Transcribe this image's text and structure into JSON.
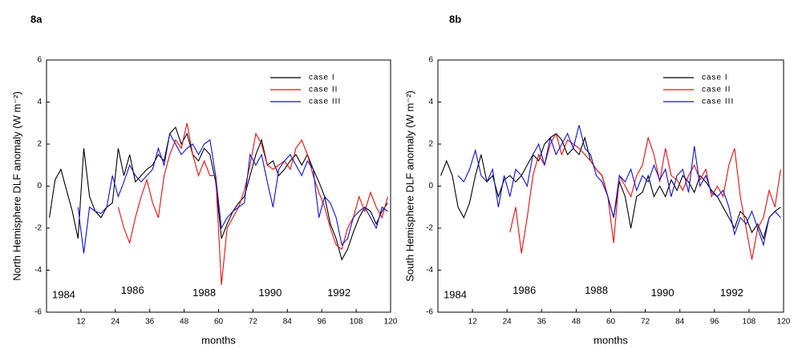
{
  "chart_data": [
    {
      "type": "line",
      "title": "8a",
      "y_label": "North Hemisphere DLF anomaly (W m⁻²)",
      "x_label": "months",
      "xlim": [
        0,
        120
      ],
      "ylim": [
        -6,
        6
      ],
      "xticks": [
        12,
        24,
        36,
        48,
        60,
        72,
        84,
        96,
        108,
        120
      ],
      "yticks": [
        -6,
        -4,
        -2,
        0,
        2,
        4,
        6
      ],
      "legend": "upper right",
      "x": [
        1,
        3,
        5,
        7,
        9,
        11,
        13,
        15,
        17,
        19,
        21,
        23,
        25,
        27,
        29,
        31,
        33,
        35,
        37,
        39,
        41,
        43,
        45,
        47,
        49,
        51,
        53,
        55,
        57,
        59,
        61,
        63,
        65,
        67,
        69,
        71,
        73,
        75,
        77,
        79,
        81,
        83,
        85,
        87,
        89,
        91,
        93,
        95,
        97,
        99,
        101,
        103,
        105,
        107,
        109,
        111,
        113,
        115,
        117,
        119
      ],
      "series": [
        {
          "name": "case I",
          "color": "#000000",
          "values": [
            -1.5,
            0.3,
            0.8,
            -0.2,
            -1.2,
            -2.5,
            1.8,
            -0.5,
            -1.2,
            -1.5,
            -1.0,
            -0.8,
            1.8,
            0.5,
            1.5,
            0.2,
            0.5,
            0.8,
            1.0,
            1.5,
            1.2,
            2.5,
            2.8,
            2.0,
            2.5,
            1.5,
            1.2,
            1.8,
            1.5,
            0.2,
            -2.5,
            -1.8,
            -1.2,
            -0.8,
            -0.5,
            0.5,
            1.5,
            2.2,
            1.0,
            1.2,
            0.5,
            0.8,
            1.2,
            1.5,
            1.0,
            1.5,
            0.8,
            0.2,
            -0.5,
            -1.8,
            -2.5,
            -3.5,
            -3.0,
            -2.2,
            -1.5,
            -1.0,
            -1.2,
            -1.8,
            -1.2,
            -0.8
          ]
        },
        {
          "name": "case II",
          "color": "#e01010",
          "values": [
            null,
            null,
            null,
            null,
            null,
            null,
            null,
            null,
            null,
            null,
            null,
            null,
            -1.0,
            -2.0,
            -2.7,
            -1.5,
            -0.5,
            0.3,
            -0.8,
            -1.5,
            0.5,
            1.5,
            2.2,
            1.8,
            3.0,
            1.5,
            0.5,
            1.2,
            0.5,
            0.5,
            -4.7,
            -2.0,
            -1.5,
            -1.0,
            -0.2,
            1.0,
            2.5,
            2.0,
            1.0,
            0.8,
            1.0,
            1.2,
            0.8,
            1.8,
            2.2,
            1.5,
            0.5,
            -0.3,
            -1.0,
            -2.0,
            -2.8,
            -3.0,
            -2.0,
            -1.5,
            -0.5,
            -1.2,
            -0.3,
            -1.0,
            -1.5,
            -0.5
          ]
        },
        {
          "name": "case III",
          "color": "#1010d0",
          "values": [
            null,
            null,
            null,
            null,
            null,
            -1.0,
            -3.2,
            -1.0,
            -1.2,
            -1.3,
            -1.0,
            0.5,
            -0.5,
            0.2,
            1.0,
            0.5,
            0.2,
            0.5,
            0.8,
            1.8,
            1.0,
            2.5,
            2.0,
            1.5,
            1.8,
            2.0,
            1.5,
            2.0,
            2.2,
            0.5,
            -2.0,
            -1.5,
            -1.2,
            -1.0,
            -0.8,
            1.5,
            1.0,
            1.5,
            0.2,
            -1.0,
            0.8,
            1.2,
            1.5,
            1.0,
            0.5,
            1.2,
            0.8,
            -1.5,
            -0.5,
            -0.8,
            -1.5,
            -2.8,
            -2.5,
            -1.5,
            -1.2,
            -1.0,
            -1.5,
            -2.0,
            -1.0,
            -1.2
          ]
        }
      ],
      "annotations": [
        {
          "text": "1984",
          "x": 6,
          "y": -5.2
        },
        {
          "text": "1986",
          "x": 30,
          "y": -5.0
        },
        {
          "text": "1988",
          "x": 55,
          "y": -5.1
        },
        {
          "text": "1990",
          "x": 78,
          "y": -5.1
        },
        {
          "text": "1992",
          "x": 102,
          "y": -5.1
        }
      ]
    },
    {
      "type": "line",
      "title": "8b",
      "y_label": "South Hemisphere DLF anomaly (W m⁻²)",
      "x_label": "months",
      "xlim": [
        0,
        120
      ],
      "ylim": [
        -6,
        6
      ],
      "xticks": [
        12,
        24,
        36,
        48,
        60,
        72,
        84,
        96,
        108,
        120
      ],
      "yticks": [
        -6,
        -4,
        -2,
        0,
        2,
        4,
        6
      ],
      "legend": "upper right",
      "x": [
        1,
        3,
        5,
        7,
        9,
        11,
        13,
        15,
        17,
        19,
        21,
        23,
        25,
        27,
        29,
        31,
        33,
        35,
        37,
        39,
        41,
        43,
        45,
        47,
        49,
        51,
        53,
        55,
        57,
        59,
        61,
        63,
        65,
        67,
        69,
        71,
        73,
        75,
        77,
        79,
        81,
        83,
        85,
        87,
        89,
        91,
        93,
        95,
        97,
        99,
        101,
        103,
        105,
        107,
        109,
        111,
        113,
        115,
        117,
        119
      ],
      "series": [
        {
          "name": "case I",
          "color": "#000000",
          "values": [
            0.5,
            1.2,
            0.5,
            -1.0,
            -1.5,
            -0.8,
            0.5,
            1.5,
            0.2,
            0.5,
            -0.5,
            0.3,
            0.5,
            0.2,
            0.5,
            1.0,
            1.5,
            1.2,
            2.0,
            2.3,
            2.5,
            2.2,
            1.5,
            1.8,
            1.5,
            2.3,
            1.2,
            0.8,
            0.5,
            -0.5,
            -1.5,
            0.2,
            -0.5,
            -2.0,
            -0.5,
            -0.3,
            0.5,
            -0.5,
            0.0,
            -0.5,
            0.3,
            -0.2,
            0.5,
            0.2,
            -0.3,
            0.5,
            0.2,
            -0.2,
            -0.5,
            -1.0,
            -1.5,
            -2.0,
            -1.2,
            -1.5,
            -2.2,
            -1.8,
            -2.5,
            -1.5,
            -1.2,
            -1.0
          ]
        },
        {
          "name": "case II",
          "color": "#e01010",
          "values": [
            null,
            null,
            null,
            null,
            null,
            null,
            null,
            null,
            null,
            null,
            null,
            null,
            -2.2,
            -1.0,
            -3.2,
            -1.5,
            0.5,
            1.5,
            1.0,
            2.0,
            2.5,
            1.5,
            2.2,
            2.0,
            1.8,
            1.5,
            1.2,
            0.8,
            0.5,
            -0.5,
            -2.7,
            0.5,
            0.0,
            -0.5,
            0.5,
            1.0,
            2.3,
            1.5,
            0.2,
            1.8,
            0.5,
            0.3,
            -0.2,
            0.5,
            1.0,
            0.3,
            0.8,
            -0.5,
            0.0,
            -0.5,
            1.0,
            1.8,
            -0.5,
            -2.0,
            -3.5,
            -2.0,
            -1.5,
            -0.2,
            -1.0,
            0.8
          ]
        },
        {
          "name": "case III",
          "color": "#1010d0",
          "values": [
            null,
            null,
            null,
            0.5,
            0.2,
            0.8,
            1.7,
            0.5,
            0.2,
            0.8,
            -1.0,
            0.5,
            -0.5,
            0.8,
            0.5,
            0.0,
            1.5,
            2.0,
            1.0,
            2.3,
            1.5,
            2.0,
            2.5,
            1.8,
            2.9,
            1.8,
            1.5,
            0.5,
            0.2,
            -0.5,
            -1.5,
            0.5,
            0.2,
            0.8,
            -0.2,
            0.5,
            0.2,
            1.0,
            0.3,
            0.8,
            -0.5,
            0.5,
            0.8,
            -0.3,
            1.9,
            0.0,
            0.5,
            -0.3,
            -0.5,
            -0.2,
            -1.0,
            -2.3,
            -1.5,
            -1.8,
            -1.2,
            -2.0,
            -2.8,
            -1.5,
            -1.2,
            -1.5
          ]
        }
      ],
      "annotations": [
        {
          "text": "1984",
          "x": 6,
          "y": -5.2
        },
        {
          "text": "1986",
          "x": 30,
          "y": -5.0
        },
        {
          "text": "1988",
          "x": 55,
          "y": -5.0
        },
        {
          "text": "1990",
          "x": 78,
          "y": -5.1
        },
        {
          "text": "1992",
          "x": 102,
          "y": -5.1
        }
      ]
    }
  ]
}
